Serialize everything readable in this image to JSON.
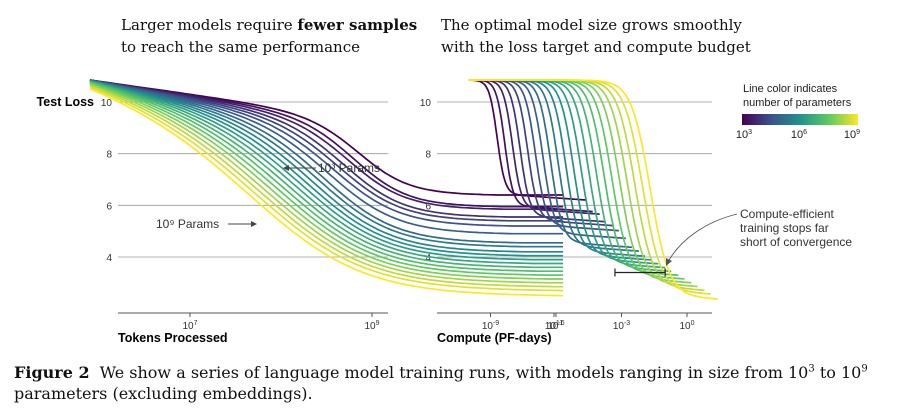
{
  "figure": {
    "caption_label": "Figure 2",
    "caption_text_pre": "We show a series of language model training runs, with models ranging in size from 10",
    "caption_exp_low": "3",
    "caption_text_mid": " to 10",
    "caption_exp_high": "9",
    "caption_text_post": " parameters (excluding embeddings)."
  },
  "colors": {
    "gridline": "#9a9a9a",
    "axis": "#555555",
    "colormap": [
      "#440154",
      "#3b528b",
      "#21918c",
      "#5ec962",
      "#fde725"
    ]
  },
  "chart_data": [
    {
      "type": "line",
      "title_line1_pre": "Larger models require ",
      "title_line1_bold": "fewer samples",
      "title_line2": "to reach the same performance",
      "ylabel": "Test Loss",
      "xlabel": "Tokens Processed",
      "xscale": "log10",
      "xlim": [
        5.5,
        11.2
      ],
      "ylim": [
        2.0,
        11.0
      ],
      "yticks": [
        4,
        6,
        8,
        10
      ],
      "xticks": [
        {
          "base": "10",
          "exp": "7",
          "value": 7
        },
        {
          "base": "10",
          "exp": "9",
          "value": 9
        },
        {
          "base": "10",
          "exp": "11",
          "value": 11
        }
      ],
      "annotations": [
        {
          "text": "10³ Params",
          "points_to": {
            "x": 8.8,
            "y": 7.2
          }
        },
        {
          "text": "10⁹ Params",
          "points_to": {
            "x": 8.0,
            "y": 5.1
          }
        }
      ],
      "series_note": "One run per model size, log10(params) from 3 to 9; start loss ~10.8 at 10^5.9 tokens, final loss at 10^11.1 tokens",
      "series": [
        {
          "log_params": 3.0,
          "final_loss": 6.45
        },
        {
          "log_params": 3.3,
          "final_loss": 6.0
        },
        {
          "log_params": 3.6,
          "final_loss": 5.9
        },
        {
          "log_params": 3.9,
          "final_loss": 5.6
        },
        {
          "log_params": 4.2,
          "final_loss": 5.45
        },
        {
          "log_params": 4.5,
          "final_loss": 5.25
        },
        {
          "log_params": 4.8,
          "final_loss": 4.95
        },
        {
          "log_params": 5.1,
          "final_loss": 4.6
        },
        {
          "log_params": 5.4,
          "final_loss": 4.45
        },
        {
          "log_params": 5.7,
          "final_loss": 4.25
        },
        {
          "log_params": 6.0,
          "final_loss": 4.1
        },
        {
          "log_params": 6.3,
          "final_loss": 3.95
        },
        {
          "log_params": 6.6,
          "final_loss": 3.8
        },
        {
          "log_params": 6.9,
          "final_loss": 3.65
        },
        {
          "log_params": 7.2,
          "final_loss": 3.5
        },
        {
          "log_params": 7.5,
          "final_loss": 3.35
        },
        {
          "log_params": 7.8,
          "final_loss": 3.2
        },
        {
          "log_params": 8.1,
          "final_loss": 3.05
        },
        {
          "log_params": 8.4,
          "final_loss": 2.9
        },
        {
          "log_params": 8.7,
          "final_loss": 2.75
        },
        {
          "log_params": 9.0,
          "final_loss": 2.55
        }
      ]
    },
    {
      "type": "line",
      "title_line1": "The optimal model size grows smoothly",
      "title_line2": "with the loss target and compute budget",
      "xlabel": "Compute (PF-days)",
      "xscale": "log10",
      "xlim": [
        -10.2,
        0.8
      ],
      "ylim": [
        2.0,
        11.0
      ],
      "yticks": [
        4,
        6,
        8,
        10
      ],
      "xticks": [
        {
          "base": "10",
          "exp": "-9",
          "value": -9
        },
        {
          "base": "10",
          "exp": "-6",
          "value": -6
        },
        {
          "base": "10",
          "exp": "-3",
          "value": -3
        },
        {
          "base": "10",
          "exp": "0",
          "value": 0
        }
      ],
      "annotations": [
        {
          "text_lines": [
            "Compute-efficient",
            "training stops far",
            "short of convergence"
          ],
          "points_to": {
            "x": -1.8,
            "y": 3.7
          }
        }
      ],
      "legend": {
        "title_lines": [
          "Line color indicates",
          "number of parameters"
        ],
        "colorbar_ticks": [
          {
            "base": "10",
            "exp": "3"
          },
          {
            "base": "10",
            "exp": "6"
          },
          {
            "base": "10",
            "exp": "9"
          }
        ],
        "placement": "top-right"
      },
      "efficient_frontier_bracket": {
        "x_start": -3.3,
        "x_end": -1.0,
        "y": 3.4
      },
      "series_note": "Same runs plotted versus compute; each curve drops at a compute proportional to model size"
    }
  ]
}
